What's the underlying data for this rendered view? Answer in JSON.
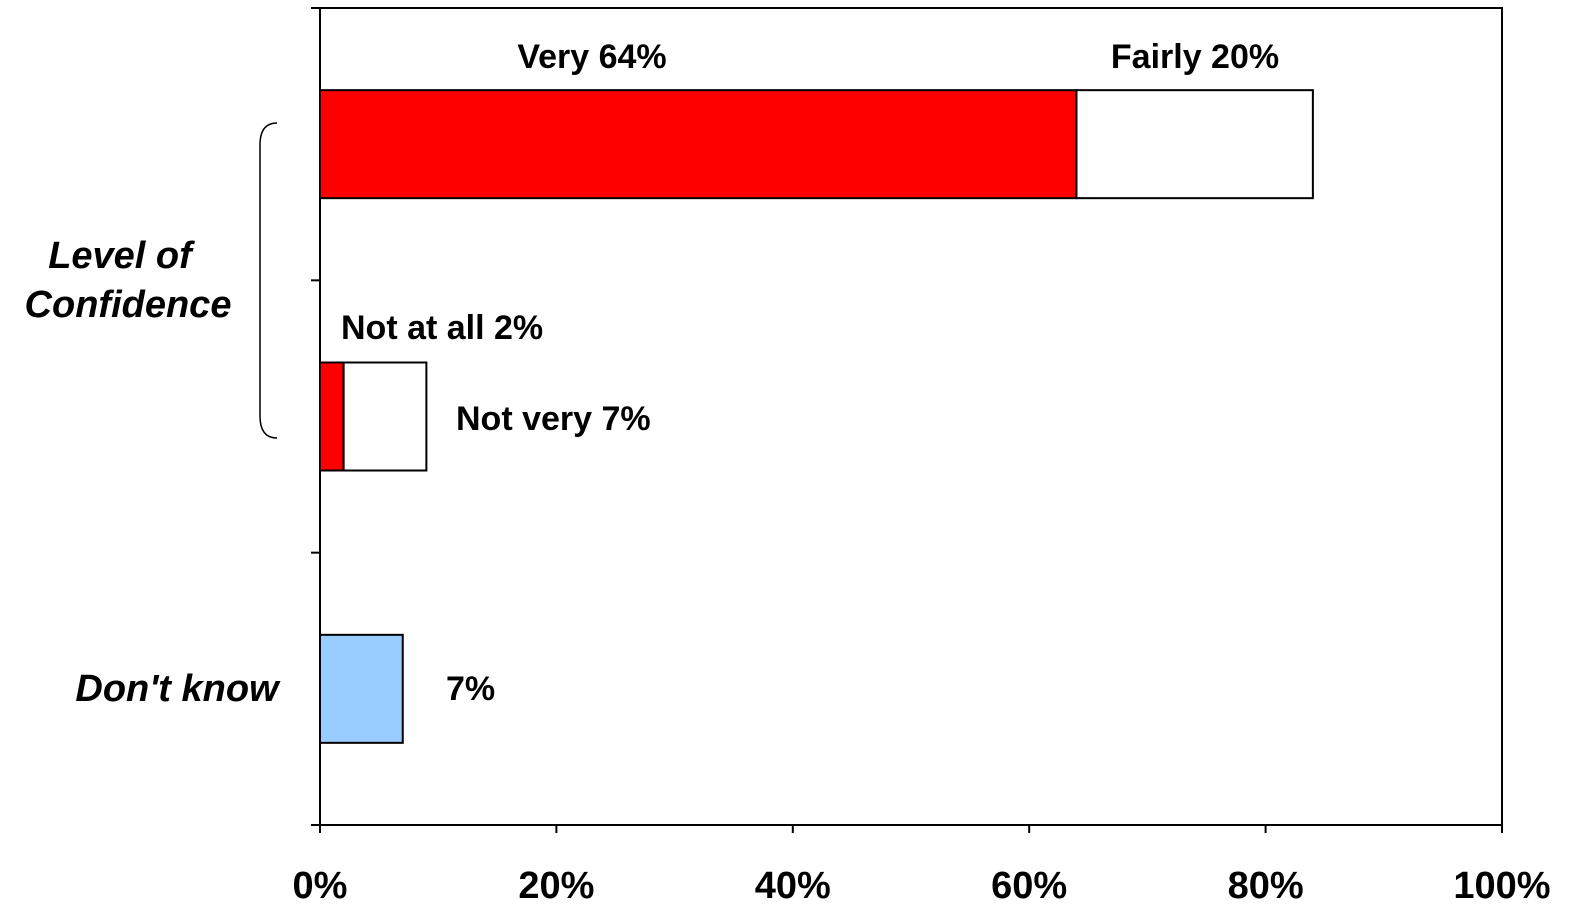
{
  "chart_data": {
    "type": "bar",
    "orientation": "horizontal",
    "stacked": true,
    "xlim": [
      0,
      100
    ],
    "x_ticks": [
      0,
      20,
      40,
      60,
      80,
      100
    ],
    "x_tick_labels": [
      "0%",
      "20%",
      "40%",
      "60%",
      "80%",
      "100%"
    ],
    "group_labels": [
      {
        "text_lines": [
          "Level of",
          "Confidence"
        ],
        "bracket": true
      },
      {
        "text_lines": [
          "Don't know"
        ],
        "bracket": false
      }
    ],
    "bars": [
      {
        "segments": [
          {
            "category": "Very",
            "value": 64,
            "color": "#ff0000",
            "label": "Very 64%"
          },
          {
            "category": "Fairly",
            "value": 20,
            "color": "#ffffff",
            "label": "Fairly 20%"
          }
        ]
      },
      {
        "segments": [
          {
            "category": "Not at all",
            "value": 2,
            "color": "#ff0000",
            "label": "Not at all 2%"
          },
          {
            "category": "Not very",
            "value": 7,
            "color": "#ffffff",
            "label": "Not very 7%"
          }
        ]
      },
      {
        "segments": [
          {
            "category": "Don't know",
            "value": 7,
            "color": "#99ccff",
            "label": "7%"
          }
        ]
      }
    ],
    "grid": false,
    "legend": "none",
    "title": "",
    "xlabel": "",
    "ylabel": ""
  },
  "colors": {
    "axis": "#000000",
    "border": "#000000"
  }
}
